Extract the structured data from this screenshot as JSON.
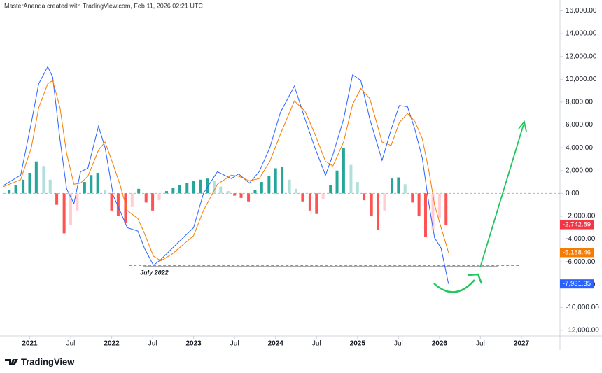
{
  "header": "MasterAnanda created with TradingView.com, Feb 11, 2026 02:21 UTC",
  "brand": "TradingView",
  "chart_data": {
    "type": "line",
    "xlim": [
      2020.68,
      2027.47
    ],
    "ylim": [
      -12000,
      16000
    ],
    "xticks": [
      {
        "value": 2021,
        "label": "2021"
      },
      {
        "value": 2021.5,
        "label": "Jul"
      },
      {
        "value": 2022,
        "label": "2022"
      },
      {
        "value": 2022.5,
        "label": "Jul"
      },
      {
        "value": 2023,
        "label": "2023"
      },
      {
        "value": 2023.5,
        "label": "Jul"
      },
      {
        "value": 2024,
        "label": "2024"
      },
      {
        "value": 2024.5,
        "label": "Jul"
      },
      {
        "value": 2025,
        "label": "2025"
      },
      {
        "value": 2025.5,
        "label": "Jul"
      },
      {
        "value": 2026,
        "label": "2026"
      },
      {
        "value": 2026.5,
        "label": "Jul"
      },
      {
        "value": 2027,
        "label": "2027"
      }
    ],
    "yticks": [
      {
        "value": 16000,
        "label": "16,000.00"
      },
      {
        "value": 14000,
        "label": "14,000.00"
      },
      {
        "value": 12000,
        "label": "12,000.00"
      },
      {
        "value": 10000,
        "label": "10,000.00"
      },
      {
        "value": 8000,
        "label": "8,000.00"
      },
      {
        "value": 6000,
        "label": "6,000.00"
      },
      {
        "value": 4000,
        "label": "4,000.00"
      },
      {
        "value": 2000,
        "label": "2,000.00"
      },
      {
        "value": 0,
        "label": "0.00"
      },
      {
        "value": -2000,
        "label": "-2,000.00"
      },
      {
        "value": -4000,
        "label": "-4,000.00"
      },
      {
        "value": -6000,
        "label": "-6,000.00"
      },
      {
        "value": -8000,
        "label": "-8,000.00"
      },
      {
        "value": -10000,
        "label": "-10,000.00"
      },
      {
        "value": -12000,
        "label": "-12,000.00"
      }
    ],
    "x": [
      2020.68,
      2020.89,
      2021.02,
      2021.11,
      2021.22,
      2021.28,
      2021.37,
      2021.45,
      2021.54,
      2021.62,
      2021.71,
      2021.84,
      2021.92,
      2022.02,
      2022.1,
      2022.19,
      2022.32,
      2022.4,
      2022.51,
      2022.6,
      2022.74,
      2022.87,
      2023.0,
      2023.12,
      2023.29,
      2023.46,
      2023.55,
      2023.68,
      2023.8,
      2023.93,
      2024.06,
      2024.23,
      2024.36,
      2024.48,
      2024.61,
      2024.7,
      2024.83,
      2024.94,
      2025.04,
      2025.15,
      2025.3,
      2025.41,
      2025.51,
      2025.61,
      2025.7,
      2025.79,
      2025.87,
      2025.94,
      2026.02,
      2026.11
    ],
    "series": [
      {
        "color": "#2962ff",
        "label_color": "#2962ff",
        "last_label": "-7,931.35",
        "values": [
          700,
          1600,
          6200,
          9600,
          11100,
          10200,
          4700,
          400,
          -900,
          1900,
          2200,
          5900,
          4000,
          -200,
          -1500,
          -3000,
          -3300,
          -4800,
          -6300,
          -5800,
          -4800,
          -3900,
          -3000,
          0,
          1900,
          1300,
          1700,
          900,
          1900,
          4000,
          7100,
          9400,
          6500,
          4000,
          1600,
          3400,
          6500,
          10400,
          9900,
          6500,
          2900,
          5600,
          7700,
          7600,
          5600,
          3100,
          -900,
          -3900,
          -4800,
          -7931.35
        ]
      },
      {
        "color": "#f57c00",
        "label_color": "#f57c00",
        "last_label": "-5,188.46",
        "values": [
          600,
          1200,
          4000,
          7500,
          9600,
          9900,
          7500,
          3500,
          800,
          900,
          1500,
          3800,
          4500,
          2500,
          800,
          -1500,
          -2200,
          -3500,
          -5500,
          -5900,
          -5300,
          -4500,
          -3700,
          -1500,
          800,
          1600,
          1500,
          1100,
          1300,
          2800,
          5200,
          8100,
          7200,
          5200,
          2800,
          2400,
          4500,
          7800,
          9200,
          8300,
          4500,
          4200,
          6200,
          7000,
          6300,
          4800,
          2000,
          -1000,
          -3000,
          -5188.46
        ]
      }
    ],
    "histogram": {
      "colors": {
        "up_rising": "#26a69a",
        "up_falling": "#b2dfdb",
        "down_falling": "#ff5252",
        "down_rising": "#ffcdd2"
      },
      "label_color": "#f23645",
      "last_label": "-2,742.89",
      "x": [
        2020.75,
        2020.83,
        2020.92,
        2021.0,
        2021.08,
        2021.17,
        2021.25,
        2021.33,
        2021.42,
        2021.5,
        2021.58,
        2021.67,
        2021.75,
        2021.83,
        2021.92,
        2022.0,
        2022.08,
        2022.17,
        2022.25,
        2022.33,
        2022.42,
        2022.5,
        2022.58,
        2022.67,
        2022.75,
        2022.83,
        2022.92,
        2023.0,
        2023.08,
        2023.17,
        2023.25,
        2023.33,
        2023.42,
        2023.5,
        2023.58,
        2023.67,
        2023.75,
        2023.83,
        2023.92,
        2024.0,
        2024.08,
        2024.17,
        2024.25,
        2024.33,
        2024.42,
        2024.5,
        2024.58,
        2024.67,
        2024.75,
        2024.83,
        2024.92,
        2025.0,
        2025.08,
        2025.17,
        2025.25,
        2025.33,
        2025.42,
        2025.5,
        2025.58,
        2025.67,
        2025.75,
        2025.83,
        2025.92,
        2026.0,
        2026.08
      ],
      "values": [
        300,
        700,
        1200,
        1800,
        2800,
        2400,
        1200,
        -1000,
        -3500,
        -2800,
        -1500,
        1000,
        1600,
        1800,
        300,
        -1500,
        -2000,
        -2600,
        -1200,
        400,
        -800,
        -1500,
        -600,
        200,
        500,
        700,
        900,
        1100,
        1200,
        1300,
        1100,
        600,
        200,
        -200,
        -400,
        -700,
        300,
        1000,
        1500,
        2200,
        2300,
        1200,
        400,
        -700,
        -1500,
        -1800,
        -500,
        700,
        2000,
        4000,
        2500,
        1000,
        -600,
        -2000,
        -3200,
        -1500,
        1300,
        1400,
        800,
        -800,
        -2000,
        -3800,
        -3200,
        -2200,
        -2742.89
      ]
    },
    "support": {
      "value": -6300,
      "x": [
        2022.21,
        2027.0
      ],
      "label": "July 2022"
    }
  }
}
